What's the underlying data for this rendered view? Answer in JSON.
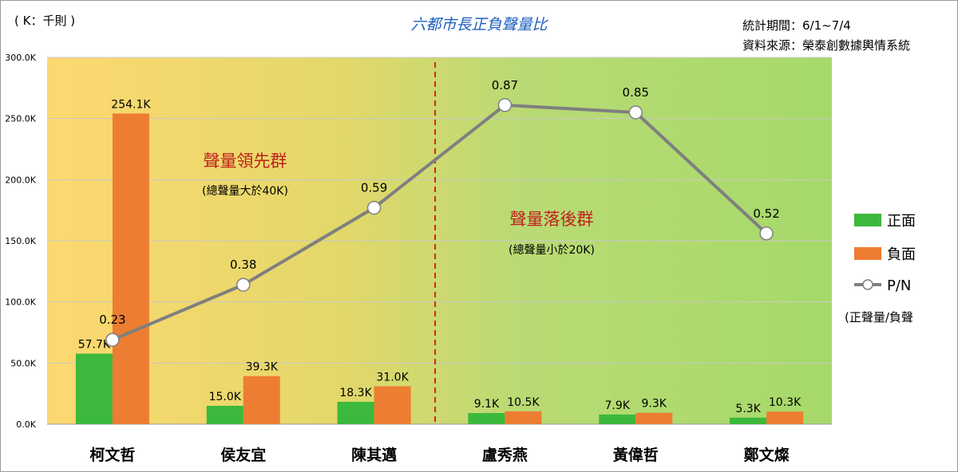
{
  "chart_data": {
    "type": "bar",
    "title": "六都市長正負聲量比",
    "unit_label": "( K：千則 )",
    "period_label": "統計期間：6/1~7/4",
    "source_label": "資料來源：榮泰創數據輿情系統",
    "categories": [
      "柯文哲",
      "侯友宜",
      "陳其邁",
      "盧秀燕",
      "黃偉哲",
      "鄭文燦"
    ],
    "series": [
      {
        "name": "正面",
        "type": "bar",
        "color": "#3cb93c",
        "values": [
          57.7,
          15.0,
          18.3,
          9.1,
          7.9,
          5.3
        ],
        "labels": [
          "57.7K",
          "15.0K",
          "18.3K",
          "9.1K",
          "7.9K",
          "5.3K"
        ]
      },
      {
        "name": "負面",
        "type": "bar",
        "color": "#ed7d31",
        "values": [
          254.1,
          39.3,
          31.0,
          10.5,
          9.3,
          10.3
        ],
        "labels": [
          "254.1K",
          "39.3K",
          "31.0K",
          "10.5K",
          "9.3K",
          "10.3K"
        ]
      },
      {
        "name": "P/N",
        "type": "line",
        "color": "#7f7f7f",
        "values": [
          0.23,
          0.38,
          0.59,
          0.87,
          0.85,
          0.52
        ],
        "labels": [
          "0.23",
          "0.38",
          "0.59",
          "0.87",
          "0.85",
          "0.52"
        ],
        "scale_max": 1.0
      }
    ],
    "yticks": [
      "0.0K",
      "50.0K",
      "100.0K",
      "150.0K",
      "200.0K",
      "250.0K",
      "300.0K"
    ],
    "ylim": [
      0,
      300
    ],
    "legend_note": "(正聲量/負聲",
    "legend_position": "right",
    "grid": true,
    "annotations": {
      "group1_title": "聲量領先群",
      "group1_sub": "(總聲量大於40K)",
      "group2_title": "聲量落後群",
      "group2_sub": "(總聲量小於20K)"
    },
    "background_gradient": [
      "#fdd870",
      "#e2d86a",
      "#b9da74",
      "#a6d96a"
    ],
    "divider_color": "#d8231f"
  }
}
